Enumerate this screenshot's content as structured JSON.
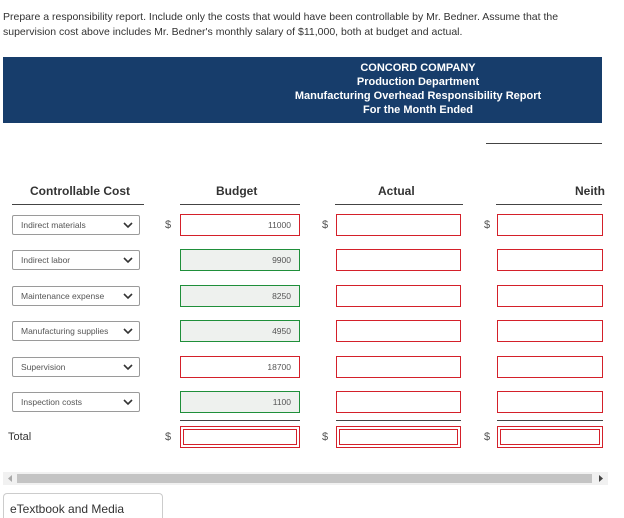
{
  "instructions": "Prepare a responsibility report. Include only the costs that would have been controllable by Mr. Bedner. Assume that the supervision cost above includes Mr. Bedner's monthly salary of $11,000, both at budget and actual.",
  "report": {
    "company": "CONCORD COMPANY",
    "department": "Production Department",
    "title": "Manufacturing Overhead Responsibility Report",
    "period": "For the Month Ended"
  },
  "columns": {
    "controllable_cost": "Controllable Cost",
    "budget": "Budget",
    "actual": "Actual",
    "neither": "Neith"
  },
  "currency": "$",
  "rows": [
    {
      "item": "Indirect materials",
      "budget": "11000"
    },
    {
      "item": "Indirect labor",
      "budget": "9900"
    },
    {
      "item": "Maintenance expense",
      "budget": "8250"
    },
    {
      "item": "Manufacturing supplies",
      "budget": "4950"
    },
    {
      "item": "Supervision",
      "budget": "18700"
    },
    {
      "item": "Inspection costs",
      "budget": "1100"
    }
  ],
  "total_label": "Total",
  "etextbook": "eTextbook and Media"
}
